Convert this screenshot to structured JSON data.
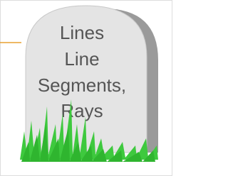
{
  "tombstone": {
    "lines": [
      "Lines",
      "Line",
      "Segments,",
      "Rays"
    ]
  }
}
